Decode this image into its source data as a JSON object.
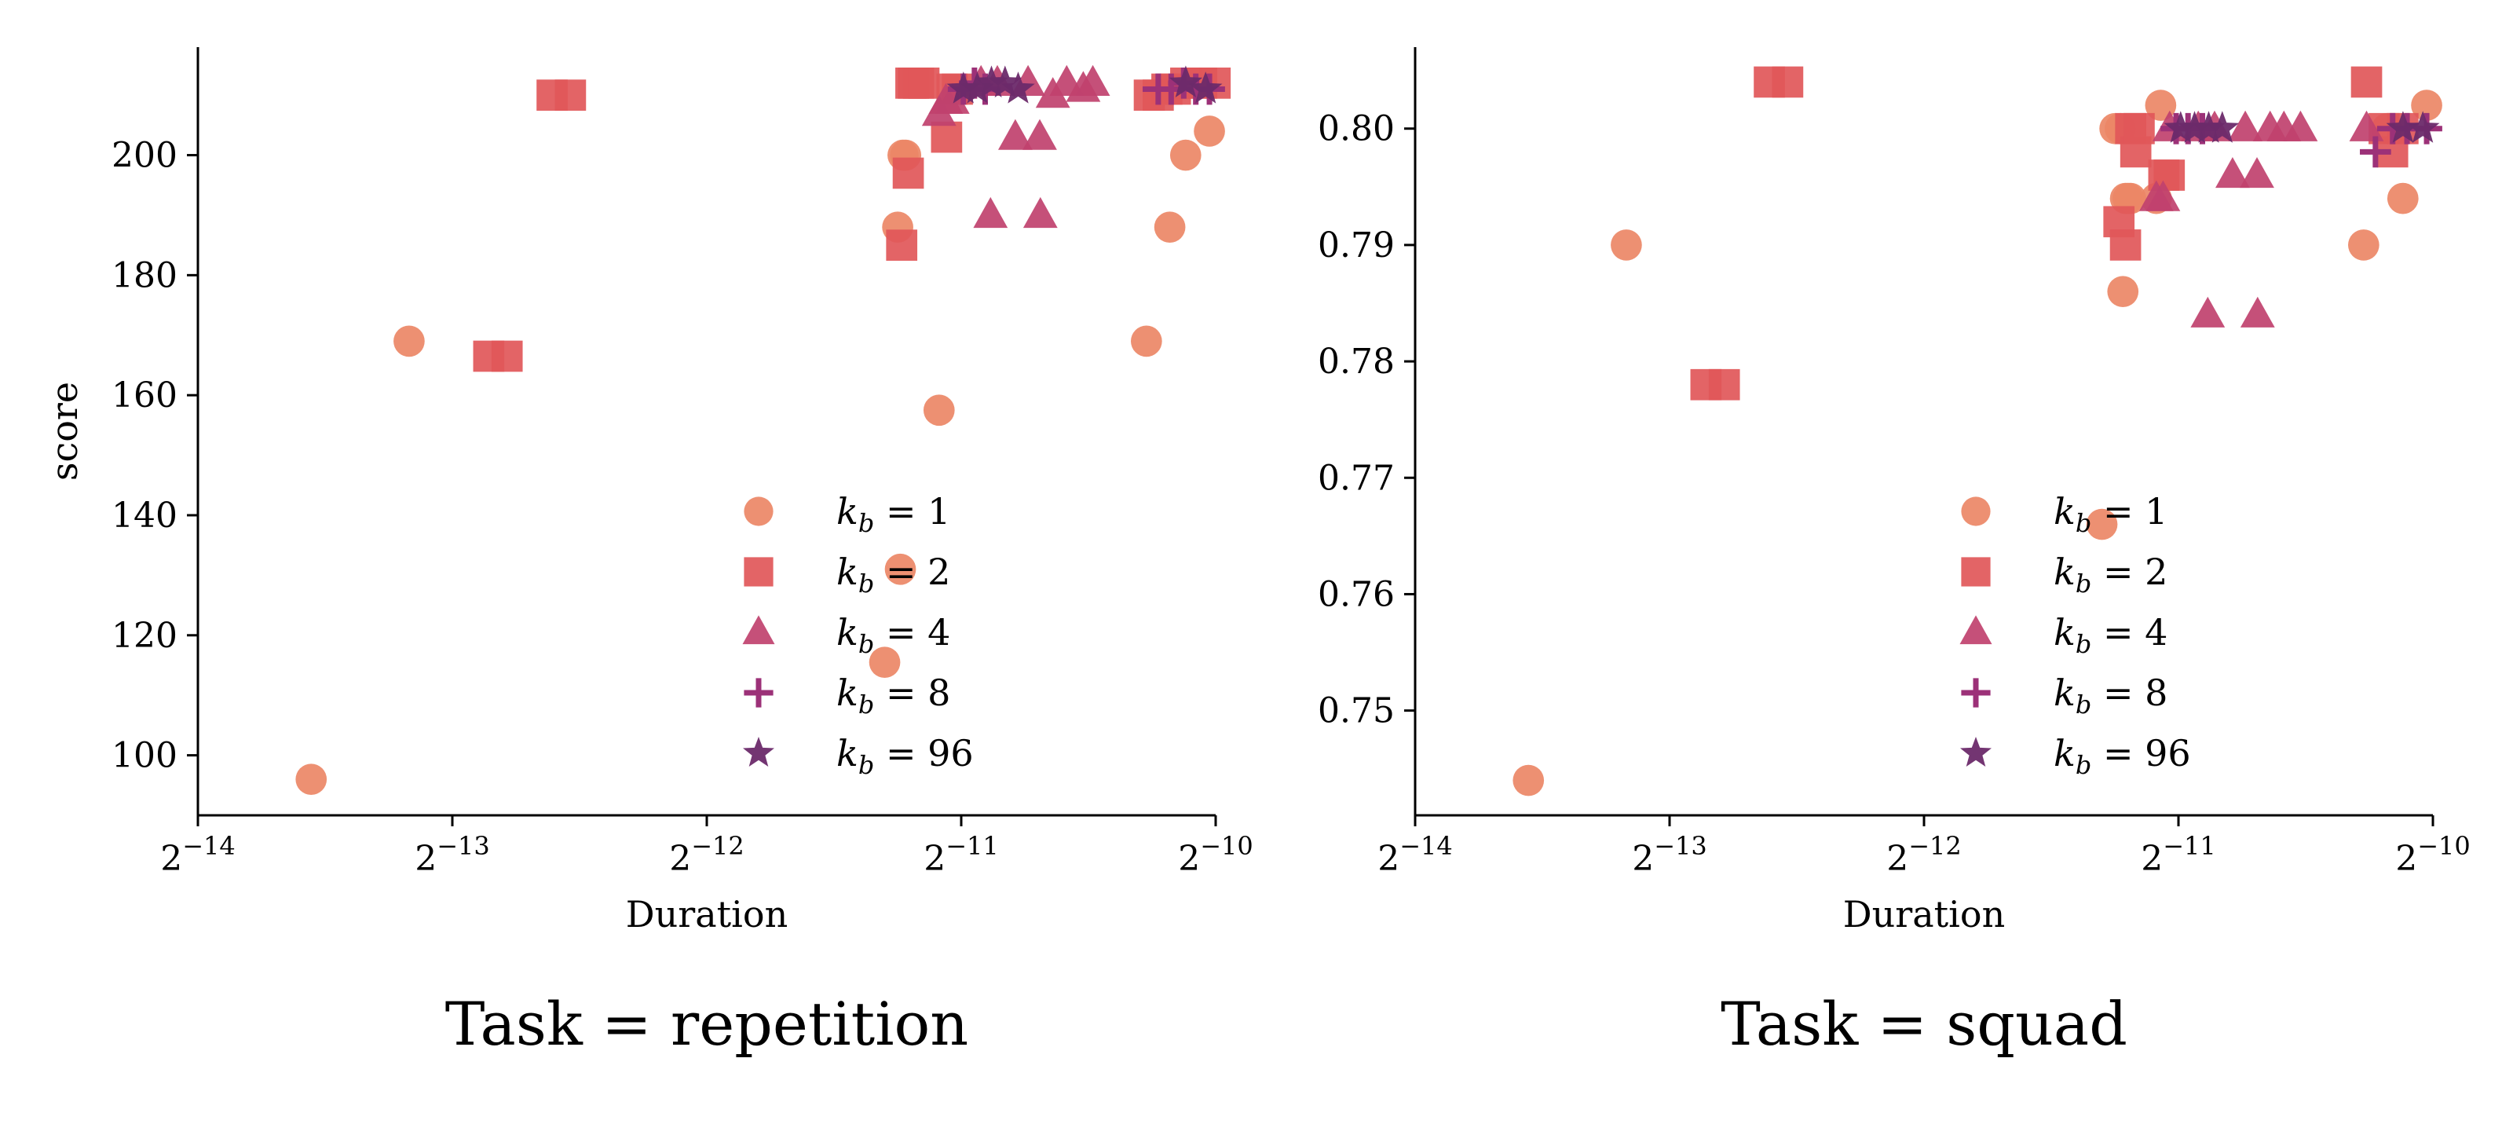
{
  "chart_data": [
    {
      "type": "scatter",
      "title": "Task = repetition",
      "xlabel": "Duration",
      "ylabel": "score",
      "xscale": "log2",
      "xlim": [
        6.103515625e-05,
        0.0009765625
      ],
      "xticks": [
        {
          "value": 6.103515625e-05,
          "base": "2",
          "exp": "−14"
        },
        {
          "value": 0.0001220703125,
          "base": "2",
          "exp": "−13"
        },
        {
          "value": 0.000244140625,
          "base": "2",
          "exp": "−12"
        },
        {
          "value": 0.00048828125,
          "base": "2",
          "exp": "−11"
        },
        {
          "value": 0.0009765625,
          "base": "2",
          "exp": "−10"
        }
      ],
      "ylim": [
        90,
        218
      ],
      "yticks": [
        {
          "value": 100,
          "label": "100"
        },
        {
          "value": 120,
          "label": "120"
        },
        {
          "value": 140,
          "label": "140"
        },
        {
          "value": 160,
          "label": "160"
        },
        {
          "value": 180,
          "label": "180"
        },
        {
          "value": 200,
          "label": "200"
        }
      ],
      "grid": false,
      "legend_position": "lower-right",
      "series": [
        {
          "name": "k_b = 1",
          "legend_var": "k",
          "legend_sub": "b",
          "legend_rest": " = 1",
          "marker": "circle",
          "color": "#ec8766",
          "points": [
            [
              8.31e-05,
              96
            ],
            [
              0.0001085,
              169
            ],
            [
              0.0003964,
              115.5
            ],
            [
              0.0004107,
              188
            ],
            [
              0.0004137,
              131
            ],
            [
              0.0004167,
              200
            ],
            [
              0.0004197,
              200
            ],
            [
              0.0004597,
              157.5
            ],
            [
              0.0008087,
              169
            ],
            [
              0.0008619,
              188
            ],
            [
              0.0008999,
              200
            ],
            [
              0.0009601,
              204
            ]
          ]
        },
        {
          "name": "k_b = 2",
          "legend_var": "k",
          "legend_sub": "b",
          "legend_rest": " = 2",
          "marker": "square",
          "color": "#e15759",
          "points": [
            [
              0.0001348,
              166.5
            ],
            [
              0.0001417,
              166.5
            ],
            [
              0.0001602,
              210
            ],
            [
              0.0001684,
              210
            ],
            [
              0.0004152,
              185
            ],
            [
              0.0004227,
              197
            ],
            [
              0.0004257,
              212
            ],
            [
              0.0004287,
              212
            ],
            [
              0.0004347,
              212
            ],
            [
              0.0004411,
              212
            ],
            [
              0.0004692,
              203
            ],
            [
              0.0004762,
              211
            ],
            [
              0.0004832,
              211
            ],
            [
              0.0008151,
              210
            ],
            [
              0.0008351,
              210
            ],
            [
              0.0008551,
              211
            ],
            [
              0.0008751,
              211
            ],
            [
              0.0009001,
              212
            ],
            [
              0.0009401,
              212
            ],
            [
              0.0009751,
              212
            ]
          ]
        },
        {
          "name": "k_b = 4",
          "legend_var": "k",
          "legend_sub": "b",
          "legend_rest": " = 4",
          "marker": "triangle",
          "color": "#c0416e",
          "points": [
            [
              0.0004597,
              207
            ],
            [
              0.0004682,
              209
            ],
            [
              0.0004767,
              209
            ],
            [
              0.0005153,
              212
            ],
            [
              0.0005288,
              190
            ],
            [
              0.0005388,
              212
            ],
            [
              0.0005658,
              203
            ],
            [
              0.0005858,
              212
            ],
            [
              0.0006048,
              203
            ],
            [
              0.0006058,
              190
            ],
            [
              0.0006268,
              210
            ],
            [
              0.0006508,
              212
            ],
            [
              0.0006808,
              211
            ],
            [
              0.0006988,
              212
            ]
          ]
        },
        {
          "name": "k_b = 8",
          "legend_var": "k",
          "legend_sub": "b",
          "legend_rest": " = 8",
          "marker": "plus",
          "color": "#9c3178",
          "points": [
            [
              0.0004912,
              211
            ],
            [
              0.0005062,
              212
            ],
            [
              0.0005212,
              211
            ],
            [
              0.0008351,
              211
            ],
            [
              0.0008651,
              211
            ],
            [
              0.0008951,
              212
            ],
            [
              0.0009251,
              211
            ],
            [
              0.0009601,
              211
            ]
          ]
        },
        {
          "name": "k_b = 96",
          "legend_var": "k",
          "legend_sub": "b",
          "legend_rest": " = 96",
          "marker": "star",
          "color": "#6b2a6a",
          "points": [
            [
              0.0004912,
              211
            ],
            [
              0.0005102,
              211
            ],
            [
              0.0005302,
              212
            ],
            [
              0.0005502,
              212
            ],
            [
              0.0005702,
              211
            ],
            [
              0.0009001,
              212
            ],
            [
              0.0009501,
              211
            ]
          ]
        }
      ]
    },
    {
      "type": "scatter",
      "title": "Task = squad",
      "xlabel": "Duration",
      "ylabel": "",
      "xscale": "log2",
      "xlim": [
        6.103515625e-05,
        0.0009765625
      ],
      "xticks": [
        {
          "value": 6.103515625e-05,
          "base": "2",
          "exp": "−14"
        },
        {
          "value": 0.0001220703125,
          "base": "2",
          "exp": "−13"
        },
        {
          "value": 0.000244140625,
          "base": "2",
          "exp": "−12"
        },
        {
          "value": 0.00048828125,
          "base": "2",
          "exp": "−11"
        },
        {
          "value": 0.0009765625,
          "base": "2",
          "exp": "−10"
        }
      ],
      "ylim": [
        0.741,
        0.807
      ],
      "yticks": [
        {
          "value": 0.75,
          "label": "0.75"
        },
        {
          "value": 0.76,
          "label": "0.76"
        },
        {
          "value": 0.77,
          "label": "0.77"
        },
        {
          "value": 0.78,
          "label": "0.78"
        },
        {
          "value": 0.79,
          "label": "0.79"
        },
        {
          "value": 0.8,
          "label": "0.80"
        }
      ],
      "grid": false,
      "legend_position": "lower-right",
      "series": [
        {
          "name": "k_b = 1",
          "legend_var": "k",
          "legend_sub": "b",
          "legend_rest": " = 1",
          "marker": "circle",
          "color": "#ec8766",
          "points": [
            [
              8.31e-05,
              0.744
            ],
            [
              0.0001085,
              0.79
            ],
            [
              0.0003964,
              0.766
            ],
            [
              0.0004107,
              0.8
            ],
            [
              0.0004167,
              0.8
            ],
            [
              0.0004197,
              0.786
            ],
            [
              0.0004227,
              0.794
            ],
            [
              0.0004257,
              0.794
            ],
            [
              0.0004287,
              0.794
            ],
            [
              0.0004597,
              0.794
            ],
            [
              0.0004652,
              0.802
            ],
            [
              0.0008087,
              0.79
            ],
            [
              0.0008619,
              0.8
            ],
            [
              0.0008999,
              0.794
            ],
            [
              0.0009601,
              0.802
            ]
          ]
        },
        {
          "name": "k_b = 2",
          "legend_var": "k",
          "legend_sub": "b",
          "legend_rest": " = 2",
          "marker": "square",
          "color": "#e15759",
          "points": [
            [
              0.0001348,
              0.778
            ],
            [
              0.0001417,
              0.778
            ],
            [
              0.0001602,
              0.804
            ],
            [
              0.0001684,
              0.804
            ],
            [
              0.0004152,
              0.792
            ],
            [
              0.0004227,
              0.79
            ],
            [
              0.0004287,
              0.8
            ],
            [
              0.0004347,
              0.798
            ],
            [
              0.0004387,
              0.8
            ],
            [
              0.0004692,
              0.796
            ],
            [
              0.0004762,
              0.796
            ],
            [
              0.0008151,
              0.804
            ],
            [
              0.0008551,
              0.8
            ],
            [
              0.0008751,
              0.798
            ],
            [
              0.0009001,
              0.8
            ]
          ]
        },
        {
          "name": "k_b = 4",
          "legend_var": "k",
          "legend_sub": "b",
          "legend_rest": " = 4",
          "marker": "triangle",
          "color": "#c0416e",
          "points": [
            [
              0.0004597,
              0.794
            ],
            [
              0.0004682,
              0.794
            ],
            [
              0.0004767,
              0.8
            ],
            [
              0.0005153,
              0.8
            ],
            [
              0.0005288,
              0.784
            ],
            [
              0.0005388,
              0.8
            ],
            [
              0.0005658,
              0.796
            ],
            [
              0.0005858,
              0.8
            ],
            [
              0.0006048,
              0.796
            ],
            [
              0.0006058,
              0.784
            ],
            [
              0.0006268,
              0.8
            ],
            [
              0.0006508,
              0.8
            ],
            [
              0.0006808,
              0.8
            ],
            [
              0.0008151,
              0.8
            ]
          ]
        },
        {
          "name": "k_b = 8",
          "legend_var": "k",
          "legend_sub": "b",
          "legend_rest": " = 8",
          "marker": "plus",
          "color": "#9c3178",
          "points": [
            [
              0.0004852,
              0.8
            ],
            [
              0.0005012,
              0.8
            ],
            [
              0.0005212,
              0.8
            ],
            [
              0.0008351,
              0.798
            ],
            [
              0.0008751,
              0.8
            ],
            [
              0.0009101,
              0.8
            ],
            [
              0.0009601,
              0.8
            ]
          ]
        },
        {
          "name": "k_b = 96",
          "legend_var": "k",
          "legend_sub": "b",
          "legend_rest": " = 96",
          "marker": "star",
          "color": "#6b2a6a",
          "points": [
            [
              0.0004912,
              0.8
            ],
            [
              0.0005102,
              0.8
            ],
            [
              0.0005302,
              0.8
            ],
            [
              0.0005502,
              0.8
            ],
            [
              0.0009001,
              0.8
            ],
            [
              0.0009501,
              0.8
            ]
          ]
        }
      ]
    }
  ]
}
